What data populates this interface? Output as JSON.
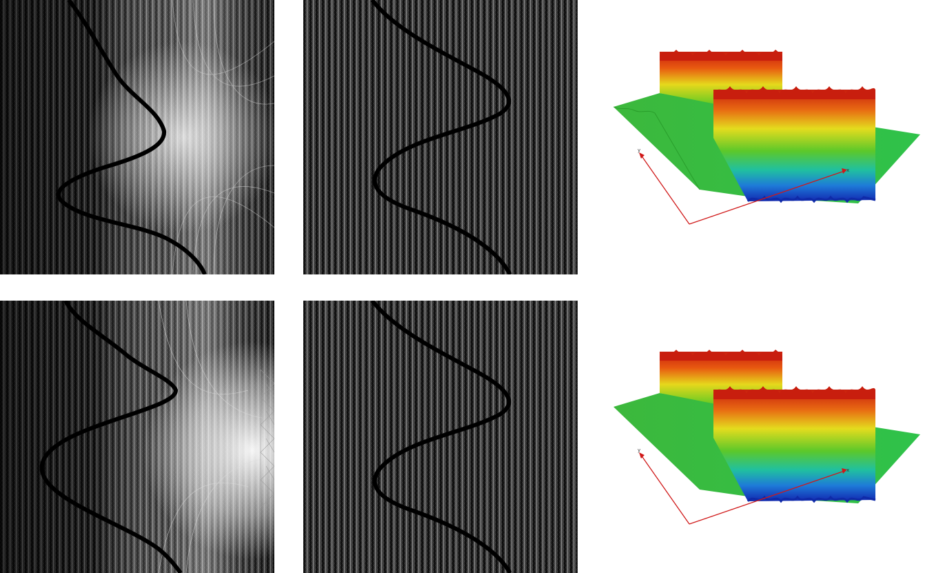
{
  "figure": {
    "panels": [
      {
        "id": "top-left",
        "kind": "adaptive-mesh",
        "mesh_style": "graded"
      },
      {
        "id": "top-center",
        "kind": "adaptive-mesh",
        "mesh_style": "uniform"
      },
      {
        "id": "top-right",
        "kind": "surface-plot"
      },
      {
        "id": "bottom-left",
        "kind": "adaptive-mesh",
        "mesh_style": "graded-coarse"
      },
      {
        "id": "bottom-center",
        "kind": "adaptive-mesh",
        "mesh_style": "uniform"
      },
      {
        "id": "bottom-right",
        "kind": "surface-plot"
      }
    ],
    "axis_labels": {
      "x": "x",
      "y": "y"
    },
    "colors": {
      "mesh_dark": "#0a0a0a",
      "mesh_light": "#e8e8e8",
      "front_curve": "#000000",
      "surface_high": "#d92b10",
      "surface_mid": "#e8e020",
      "surface_low": "#2aa82a",
      "surface_min": "#1030b8",
      "axis": "#d01818"
    }
  }
}
